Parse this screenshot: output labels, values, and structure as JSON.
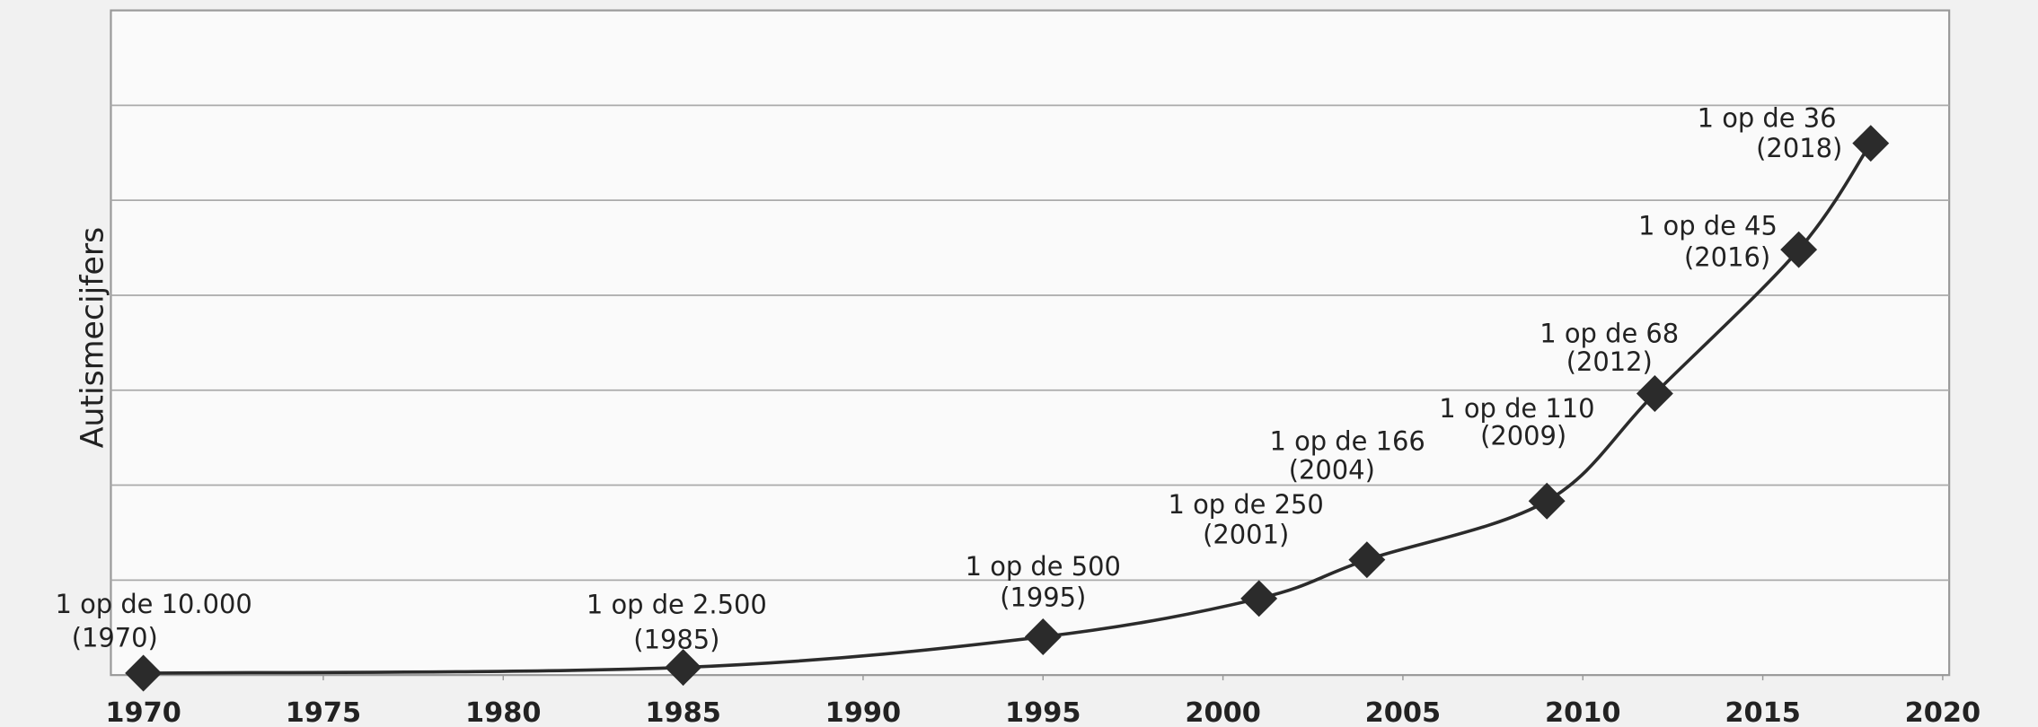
{
  "chart_data": {
    "type": "line",
    "y_label": "Autismecijfers",
    "x": [
      1970,
      1985,
      1995,
      2001,
      2004,
      2009,
      2012,
      2016,
      2018
    ],
    "values": [
      10000,
      2500,
      500,
      250,
      166,
      110,
      68,
      45,
      36
    ],
    "value_labels": [
      "1 op de 10.000",
      "1 op de 2.500",
      "1 op de 500",
      "1 op de 250",
      "1 op de 166",
      "1 op de 110",
      "1 op de 68",
      "1 op de 45",
      "1 op de 36"
    ],
    "x_labels": [
      "(1970)",
      "(1985)",
      "(1995)",
      "(2001)",
      "(2004)",
      "(2009)",
      "(2012)",
      "(2016)",
      "(2018)"
    ],
    "xlim": [
      1969,
      2020
    ],
    "xticks": [
      1970,
      1975,
      1980,
      1985,
      1990,
      1995,
      2000,
      2005,
      2010,
      2015,
      2020
    ],
    "color": "#2b2b2b",
    "grid": true
  }
}
